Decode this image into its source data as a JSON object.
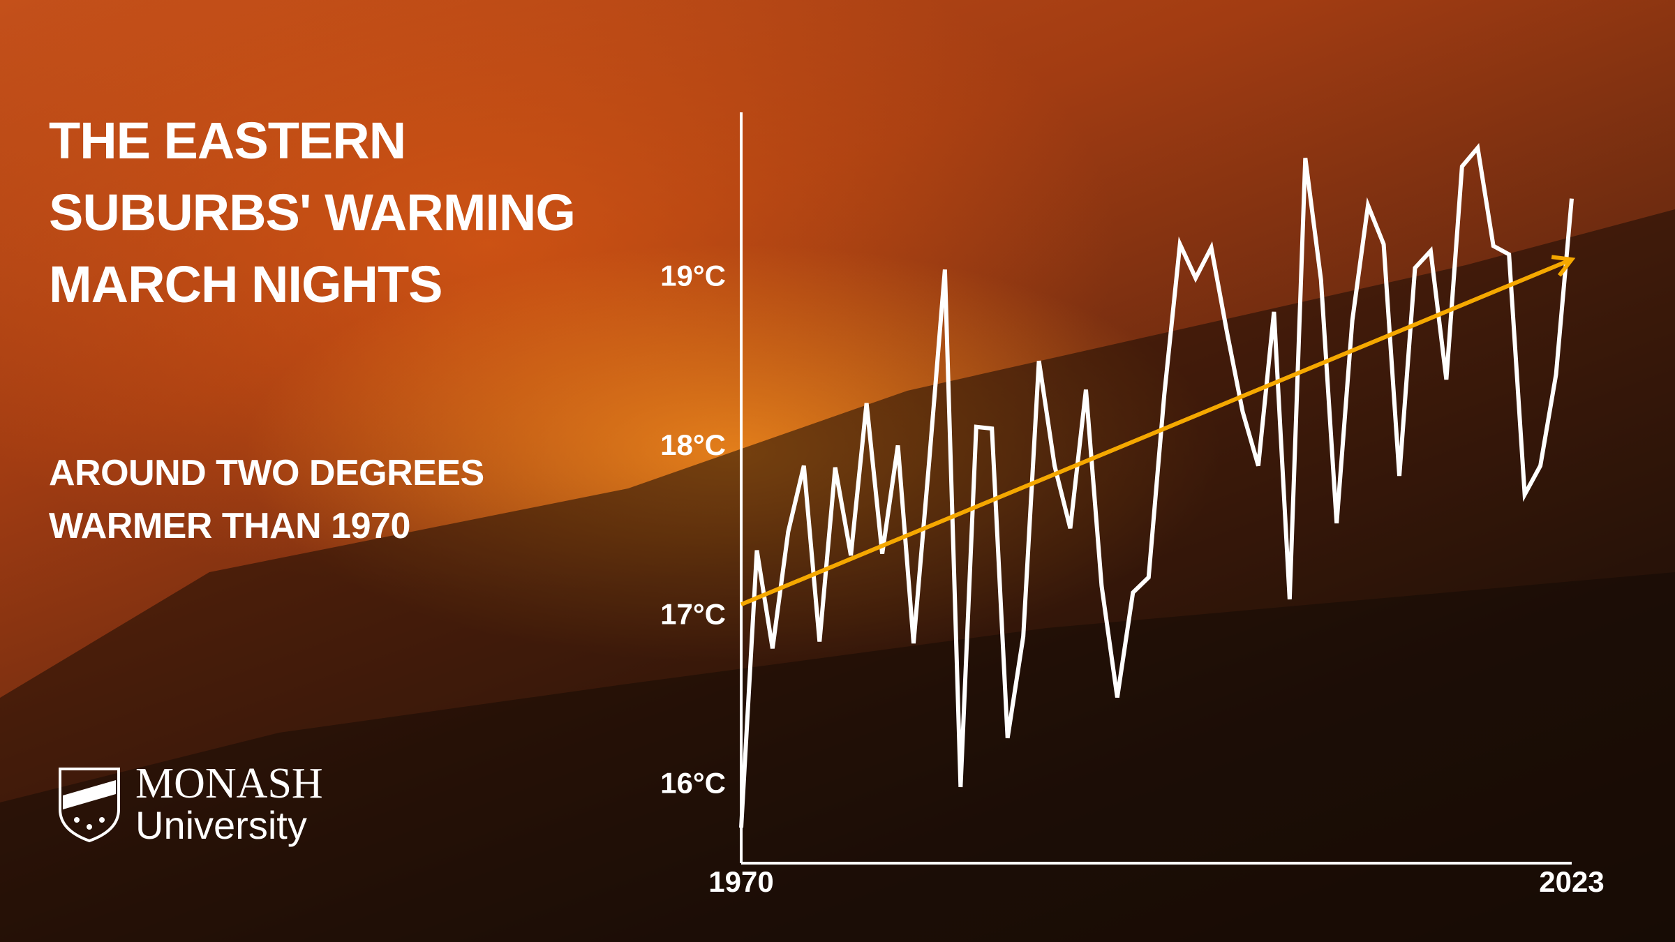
{
  "chart_data": {
    "type": "line",
    "title": "THE EASTERN SUBURBS' WARMING MARCH NIGHTS",
    "subtitle": "AROUND TWO DEGREES WARMER THAN 1970",
    "logo": {
      "name": "MONASH",
      "subname": "University"
    },
    "x": [
      1970,
      1971,
      1972,
      1973,
      1974,
      1975,
      1976,
      1977,
      1978,
      1979,
      1980,
      1981,
      1982,
      1983,
      1984,
      1985,
      1986,
      1987,
      1988,
      1989,
      1990,
      1991,
      1992,
      1993,
      1994,
      1995,
      1996,
      1997,
      1998,
      1999,
      2000,
      2001,
      2002,
      2003,
      2004,
      2005,
      2006,
      2007,
      2008,
      2009,
      2010,
      2011,
      2012,
      2013,
      2014,
      2015,
      2016,
      2017,
      2018,
      2019,
      2020,
      2021,
      2022,
      2023
    ],
    "series": [
      {
        "color": "#ffffff",
        "values": [
          15.75,
          17.39,
          16.81,
          17.5,
          17.89,
          16.85,
          17.88,
          17.36,
          18.26,
          17.37,
          18.01,
          16.84,
          17.92,
          19.05,
          15.99,
          18.12,
          18.11,
          16.28,
          16.88,
          18.51,
          17.89,
          17.52,
          18.34,
          17.18,
          16.52,
          17.14,
          17.23,
          18.31,
          19.2,
          19.0,
          19.18,
          18.68,
          18.21,
          17.89,
          18.8,
          17.1,
          19.71,
          18.99,
          17.55,
          18.75,
          19.43,
          19.2,
          17.83,
          19.06,
          19.16,
          18.4,
          19.66,
          19.77,
          19.19,
          19.14,
          17.72,
          17.89,
          18.43,
          19.47
        ]
      }
    ],
    "trend": {
      "x": [
        1970,
        2023
      ],
      "values": [
        17.07,
        19.11
      ],
      "color": "#f5a800"
    },
    "xlim": [
      1970,
      2023
    ],
    "xticks": [
      1970,
      2023
    ],
    "ylim": [
      15.54,
      19.98
    ],
    "yticks": [
      {
        "value": 16,
        "label": "16°C"
      },
      {
        "value": 17,
        "label": "17°C"
      },
      {
        "value": 18,
        "label": "18°C"
      },
      {
        "value": 19,
        "label": "19°C"
      }
    ]
  }
}
